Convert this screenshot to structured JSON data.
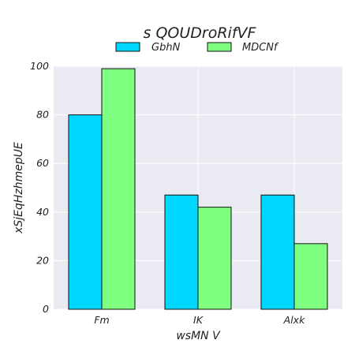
{
  "chart_data": {
    "type": "bar",
    "title": "s QOUDroRifVF",
    "xlabel": "wsMN V",
    "ylabel": "xSjEqHzhmepUE",
    "categories": [
      "Fm",
      "IK",
      "Alxk"
    ],
    "series": [
      {
        "name": "GbhN",
        "values": [
          80,
          47,
          47
        ],
        "color": "#00d7ff"
      },
      {
        "name": "MDCNf",
        "values": [
          99,
          42,
          27
        ],
        "color": "#7fff7f"
      }
    ],
    "ylim": [
      0,
      100
    ],
    "yticks": [
      0,
      20,
      40,
      60,
      80,
      100
    ],
    "grid": true,
    "legend_position": "top-center",
    "background": "#eaeaf2"
  }
}
